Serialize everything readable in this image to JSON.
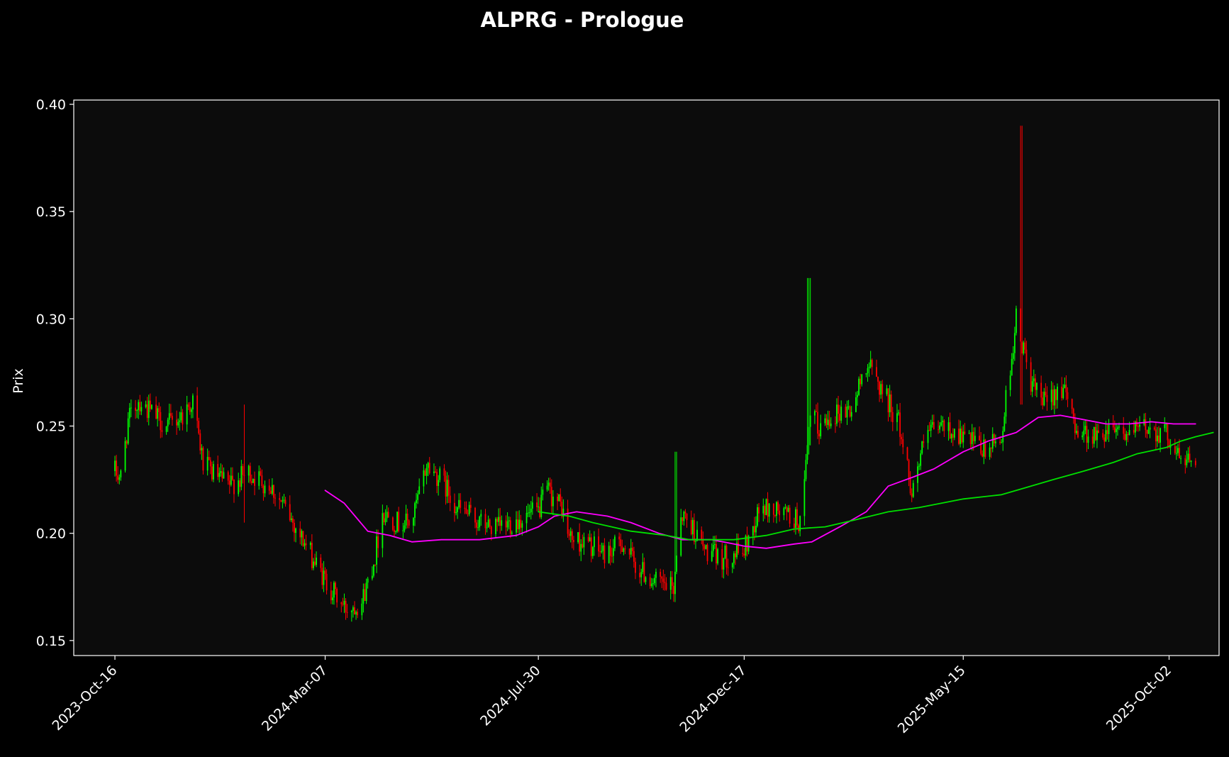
{
  "chart_data": {
    "type": "candlestick",
    "title": "ALPRG - Prologue",
    "ylabel": "Prix",
    "xlabel": "",
    "ylim": [
      0.143,
      0.402
    ],
    "xlim": [
      "2023-09-18",
      "2025-11-05"
    ],
    "y_ticks": [
      "0.15",
      "0.20",
      "0.25",
      "0.30",
      "0.35",
      "0.40"
    ],
    "x_ticks": [
      "2023-Oct-16",
      "2024-Mar-07",
      "2024-Jul-30",
      "2024-Dec-17",
      "2025-May-15",
      "2025-Oct-02"
    ],
    "grid": false,
    "colors": {
      "background": "#000000",
      "plot_background": "#0c0c0c",
      "up": "#00ff00",
      "down": "#ff0000",
      "ma_short": "#ff00ff",
      "ma_long": "#00e000",
      "axis": "#ffffff"
    },
    "price_keypoints": [
      [
        "2023-10-16",
        0.229
      ],
      [
        "2023-10-20",
        0.226
      ],
      [
        "2023-10-25",
        0.252
      ],
      [
        "2023-11-01",
        0.262
      ],
      [
        "2023-11-10",
        0.256
      ],
      [
        "2023-11-20",
        0.25
      ],
      [
        "2023-12-01",
        0.255
      ],
      [
        "2023-12-08",
        0.262
      ],
      [
        "2023-12-15",
        0.232
      ],
      [
        "2024-01-01",
        0.222
      ],
      [
        "2024-01-15",
        0.228
      ],
      [
        "2024-01-30",
        0.222
      ],
      [
        "2024-02-10",
        0.21
      ],
      [
        "2024-02-20",
        0.198
      ],
      [
        "2024-03-01",
        0.185
      ],
      [
        "2024-03-07",
        0.178
      ],
      [
        "2024-03-20",
        0.165
      ],
      [
        "2024-04-01",
        0.168
      ],
      [
        "2024-04-10",
        0.19
      ],
      [
        "2024-04-15",
        0.21
      ],
      [
        "2024-04-25",
        0.205
      ],
      [
        "2024-05-05",
        0.205
      ],
      [
        "2024-05-15",
        0.232
      ],
      [
        "2024-05-25",
        0.225
      ],
      [
        "2024-06-05",
        0.212
      ],
      [
        "2024-06-20",
        0.205
      ],
      [
        "2024-07-01",
        0.202
      ],
      [
        "2024-07-15",
        0.206
      ],
      [
        "2024-07-30",
        0.21
      ],
      [
        "2024-08-05",
        0.22
      ],
      [
        "2024-08-15",
        0.212
      ],
      [
        "2024-08-20",
        0.198
      ],
      [
        "2024-09-01",
        0.195
      ],
      [
        "2024-09-15",
        0.19
      ],
      [
        "2024-09-25",
        0.196
      ],
      [
        "2024-10-05",
        0.184
      ],
      [
        "2024-10-20",
        0.176
      ],
      [
        "2024-10-30",
        0.174
      ],
      [
        "2024-11-03",
        0.21
      ],
      [
        "2024-11-10",
        0.205
      ],
      [
        "2024-11-20",
        0.192
      ],
      [
        "2024-12-01",
        0.188
      ],
      [
        "2024-12-17",
        0.192
      ],
      [
        "2024-12-28",
        0.212
      ],
      [
        "2025-01-10",
        0.21
      ],
      [
        "2025-01-25",
        0.205
      ],
      [
        "2025-02-01",
        0.262
      ],
      [
        "2025-02-05",
        0.248
      ],
      [
        "2025-02-15",
        0.256
      ],
      [
        "2025-03-01",
        0.258
      ],
      [
        "2025-03-10",
        0.28
      ],
      [
        "2025-03-20",
        0.268
      ],
      [
        "2025-04-01",
        0.252
      ],
      [
        "2025-04-10",
        0.22
      ],
      [
        "2025-04-20",
        0.246
      ],
      [
        "2025-05-01",
        0.25
      ],
      [
        "2025-05-15",
        0.245
      ],
      [
        "2025-05-30",
        0.238
      ],
      [
        "2025-06-10",
        0.245
      ],
      [
        "2025-06-20",
        0.3
      ],
      [
        "2025-06-25",
        0.285
      ],
      [
        "2025-07-01",
        0.268
      ],
      [
        "2025-07-10",
        0.26
      ],
      [
        "2025-07-20",
        0.27
      ],
      [
        "2025-08-01",
        0.248
      ],
      [
        "2025-08-15",
        0.245
      ],
      [
        "2025-08-25",
        0.252
      ],
      [
        "2025-09-05",
        0.245
      ],
      [
        "2025-09-15",
        0.25
      ],
      [
        "2025-10-01",
        0.246
      ],
      [
        "2025-10-10",
        0.234
      ],
      [
        "2025-10-20",
        0.235
      ]
    ],
    "wick_spikes": [
      [
        "2025-01-30",
        0.319,
        0.241
      ],
      [
        "2025-06-23",
        0.39,
        0.26
      ],
      [
        "2024-11-01",
        0.238,
        0.195
      ],
      [
        "2024-01-13",
        0.26,
        0.205
      ]
    ],
    "series": [
      {
        "role": "ma_short",
        "values": [
          [
            "2024-03-07",
            0.22
          ],
          [
            "2024-03-20",
            0.214
          ],
          [
            "2024-04-05",
            0.201
          ],
          [
            "2024-04-20",
            0.199
          ],
          [
            "2024-05-05",
            0.196
          ],
          [
            "2024-05-25",
            0.197
          ],
          [
            "2024-06-20",
            0.197
          ],
          [
            "2024-07-15",
            0.199
          ],
          [
            "2024-07-30",
            0.203
          ],
          [
            "2024-08-10",
            0.208
          ],
          [
            "2024-08-25",
            0.21
          ],
          [
            "2024-09-15",
            0.208
          ],
          [
            "2024-10-01",
            0.205
          ],
          [
            "2024-10-20",
            0.2
          ],
          [
            "2024-11-05",
            0.197
          ],
          [
            "2024-11-25",
            0.197
          ],
          [
            "2024-12-10",
            0.195
          ],
          [
            "2024-12-17",
            0.194
          ],
          [
            "2025-01-01",
            0.193
          ],
          [
            "2025-01-20",
            0.195
          ],
          [
            "2025-02-01",
            0.196
          ],
          [
            "2025-02-20",
            0.203
          ],
          [
            "2025-03-10",
            0.21
          ],
          [
            "2025-03-25",
            0.222
          ],
          [
            "2025-04-10",
            0.226
          ],
          [
            "2025-04-25",
            0.23
          ],
          [
            "2025-05-15",
            0.238
          ],
          [
            "2025-06-01",
            0.243
          ],
          [
            "2025-06-20",
            0.247
          ],
          [
            "2025-07-05",
            0.254
          ],
          [
            "2025-07-20",
            0.255
          ],
          [
            "2025-08-05",
            0.253
          ],
          [
            "2025-08-20",
            0.251
          ],
          [
            "2025-09-05",
            0.251
          ],
          [
            "2025-09-20",
            0.252
          ],
          [
            "2025-10-05",
            0.251
          ],
          [
            "2025-10-20",
            0.251
          ]
        ]
      },
      {
        "role": "ma_long",
        "values": [
          [
            "2024-07-30",
            0.21
          ],
          [
            "2024-08-20",
            0.208
          ],
          [
            "2024-09-05",
            0.205
          ],
          [
            "2024-10-01",
            0.201
          ],
          [
            "2024-10-25",
            0.199
          ],
          [
            "2024-11-10",
            0.197
          ],
          [
            "2024-12-10",
            0.197
          ],
          [
            "2025-01-01",
            0.199
          ],
          [
            "2025-01-20",
            0.202
          ],
          [
            "2025-02-10",
            0.203
          ],
          [
            "2025-03-01",
            0.206
          ],
          [
            "2025-03-25",
            0.21
          ],
          [
            "2025-04-15",
            0.212
          ],
          [
            "2025-05-15",
            0.216
          ],
          [
            "2025-06-10",
            0.218
          ],
          [
            "2025-06-25",
            0.221
          ],
          [
            "2025-07-15",
            0.225
          ],
          [
            "2025-08-05",
            0.229
          ],
          [
            "2025-08-25",
            0.233
          ],
          [
            "2025-09-10",
            0.237
          ],
          [
            "2025-09-30",
            0.24
          ],
          [
            "2025-10-10",
            0.243
          ],
          [
            "2025-10-20",
            0.245
          ],
          [
            "2025-11-01",
            0.247
          ]
        ]
      }
    ]
  }
}
